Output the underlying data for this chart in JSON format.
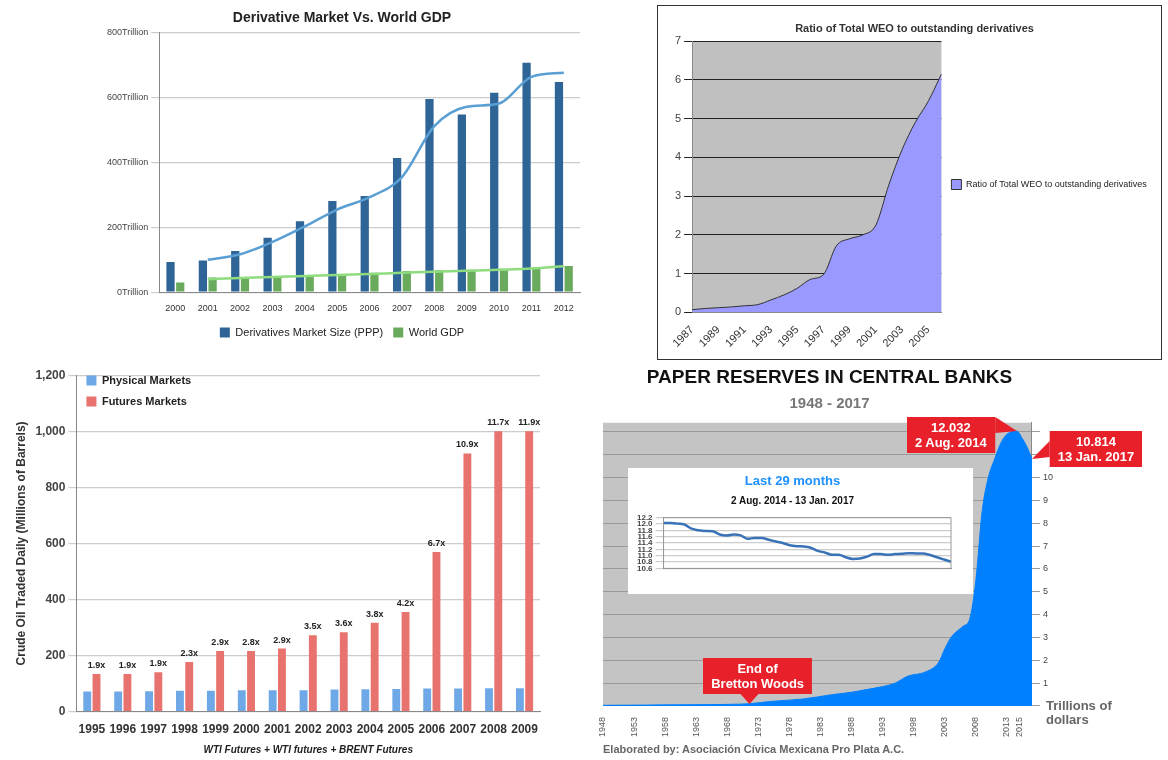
{
  "chart_data": [
    {
      "type": "bar",
      "title": "Derivative Market Vs. World GDP",
      "categories": [
        "2000",
        "2001",
        "2002",
        "2003",
        "2004",
        "2005",
        "2006",
        "2007",
        "2008",
        "2009",
        "2010",
        "2011",
        "2012"
      ],
      "series": [
        {
          "name": "Derivatives Market Size (PPP)",
          "color": "#2f6496",
          "values": [
            93,
            98,
            127,
            168,
            219,
            281,
            297,
            414,
            596,
            548,
            615,
            708,
            648
          ]
        },
        {
          "name": "World GDP",
          "color": "#6aaa5c",
          "values": [
            30,
            45,
            45,
            48,
            52,
            55,
            60,
            65,
            68,
            69,
            72,
            77,
            81
          ]
        },
        {
          "type": "line",
          "color": "#5a9fd4",
          "values": [
            null,
            100,
            117,
            155,
            203,
            255,
            293,
            355,
            512,
            572,
            582,
            664,
            677
          ]
        },
        {
          "type": "line",
          "color": "#8fdc7f",
          "values": [
            null,
            40,
            44,
            47,
            50,
            53,
            56,
            60,
            63,
            66,
            69,
            73,
            80
          ]
        }
      ],
      "ylim": [
        0,
        800
      ],
      "yticks": [
        {
          "value": 0,
          "label": "0Trillion"
        },
        {
          "value": 200,
          "label": "200Trillion"
        },
        {
          "value": 400,
          "label": "400Trillion"
        },
        {
          "value": 600,
          "label": "600Trillion"
        },
        {
          "value": 800,
          "label": "800Trillion"
        }
      ],
      "grid": "y",
      "legend": "bottom"
    },
    {
      "type": "area",
      "title": "Ratio of Total WEO to outstanding derivatives",
      "categories": [
        "1987",
        null,
        "1989",
        null,
        "1991",
        null,
        "1993",
        null,
        "1995",
        null,
        "1997",
        null,
        "1999",
        null,
        "2001",
        null,
        "2003",
        null,
        "2005",
        null
      ],
      "series": [
        {
          "name": "Ratio of Total WEO to outstanding derivatives",
          "color": "#9999ff",
          "values": [
            0.07,
            0.1,
            0.12,
            0.14,
            0.17,
            0.2,
            0.32,
            0.45,
            0.62,
            0.85,
            0.97,
            1.72,
            1.9,
            2.0,
            2.25,
            3.3,
            4.2,
            4.9,
            5.45,
            6.15
          ]
        }
      ],
      "ylim": [
        0,
        7
      ],
      "yticks": [
        0,
        1,
        2,
        3,
        4,
        5,
        6,
        7
      ],
      "grid": "y",
      "legend": "right"
    },
    {
      "type": "bar",
      "ylabel": "Crude Oil Traded Daily (Millions of Barrels)",
      "xlabel": "WTI Futures + WTI futures + BRENT Futures",
      "categories": [
        "1995",
        "1996",
        "1997",
        "1998",
        "1999",
        "2000",
        "2001",
        "2002",
        "2003",
        "2004",
        "2005",
        "2006",
        "2007",
        "2008",
        "2009"
      ],
      "series": [
        {
          "name": "Physical Markets",
          "color": "#6fa8e6",
          "values": [
            72,
            72,
            73,
            74,
            74,
            76,
            76,
            76,
            79,
            80,
            81,
            82,
            82,
            83,
            83
          ]
        },
        {
          "name": "Futures Markets",
          "color": "#e8726e",
          "values": [
            134,
            134,
            140,
            177,
            216,
            216,
            225,
            272,
            283,
            317,
            355,
            569,
            921,
            1000,
            1000
          ]
        }
      ],
      "annotations": [
        {
          "text": "1.9x",
          "x": "1995",
          "y": 134
        },
        {
          "text": "1.9x",
          "x": "1996",
          "y": 134
        },
        {
          "text": "1.9x",
          "x": "1997",
          "y": 140
        },
        {
          "text": "2.3x",
          "x": "1998",
          "y": 177
        },
        {
          "text": "2.9x",
          "x": "1999",
          "y": 216
        },
        {
          "text": "2.8x",
          "x": "2000",
          "y": 216
        },
        {
          "text": "2.9x",
          "x": "2001",
          "y": 225
        },
        {
          "text": "3.5x",
          "x": "2002",
          "y": 272
        },
        {
          "text": "3.6x",
          "x": "2003",
          "y": 283
        },
        {
          "text": "3.8x",
          "x": "2004",
          "y": 317
        },
        {
          "text": "4.2x",
          "x": "2005",
          "y": 355
        },
        {
          "text": "6.7x",
          "x": "2006",
          "y": 569
        },
        {
          "text": "10.9x",
          "x": "2007",
          "y": 921
        },
        {
          "text": "11.7x",
          "x": "2008",
          "y": 1000
        },
        {
          "text": "11.9x",
          "x": "2009",
          "y": 1000
        }
      ],
      "ylim": [
        0,
        1200
      ],
      "yticks": [
        0,
        200,
        400,
        600,
        800,
        {
          "value": 1000,
          "label": "1,000"
        },
        {
          "value": 1200,
          "label": "1,200"
        }
      ],
      "grid": "y",
      "legend": "top left"
    },
    {
      "type": "area",
      "title": "PAPER RESERVES IN CENTRAL BANKS",
      "subtitle": "1948 - 2017",
      "ylabel": "Trillions of dollars",
      "x": [
        1948,
        1955,
        1960,
        1965,
        1970,
        1971.6,
        1975,
        1980,
        1985,
        1988,
        1990,
        1993,
        1995,
        1997,
        2000,
        2002,
        2003,
        2004,
        2006,
        2007,
        2008,
        2009,
        2010,
        2011,
        2012,
        2013,
        2014.59,
        2015.5,
        2016.3,
        2017.03
      ],
      "series": [
        {
          "color": "#0080ff",
          "values": [
            0.03,
            0.04,
            0.05,
            0.06,
            0.08,
            0.1,
            0.2,
            0.3,
            0.5,
            0.6,
            0.7,
            0.85,
            1.0,
            1.3,
            1.5,
            1.9,
            2.5,
            3.0,
            3.5,
            3.8,
            5.5,
            8.5,
            10.0,
            10.8,
            11.5,
            11.9,
            12.032,
            11.7,
            11.3,
            10.814
          ]
        }
      ],
      "xlim": [
        1948,
        2017.03
      ],
      "xticks": [
        1948,
        1953,
        1958,
        1963,
        1968,
        1973,
        1978,
        1983,
        1988,
        1993,
        1998,
        2003,
        2008,
        2013,
        2015
      ],
      "ylim": [
        0,
        12.4
      ],
      "yticks": [
        {
          "value": 0,
          "label": null
        },
        1,
        2,
        3,
        4,
        5,
        6,
        7,
        8,
        9,
        10,
        {
          "value": 11,
          "label": null
        },
        {
          "value": 12,
          "label": null
        }
      ],
      "grid": "y",
      "annotations": [
        {
          "text": "12.032\n2 Aug. 2014",
          "x": 2014.59,
          "y": 12.032
        },
        {
          "text": "10.814\n13 Jan. 2017",
          "x": 2017.03,
          "y": 10.814
        },
        {
          "text": "End of\nBretton Woods",
          "x": 1971.6,
          "y": 0.1
        },
        "Elaborated by:  Asociación Cívica Mexicana Pro Plata A.C."
      ]
    },
    {
      "type": "line",
      "title": "Last 29 months",
      "subtitle": "2 Aug. 2014 - 13 Jan. 2017",
      "categories": [
        null,
        null,
        null,
        null,
        null,
        null,
        null,
        null,
        null,
        null,
        null,
        null,
        null,
        null,
        null,
        null,
        null,
        null,
        null,
        null,
        null,
        null,
        null,
        null,
        null,
        null,
        null,
        null,
        null,
        null,
        null,
        null,
        null,
        null,
        null,
        null,
        null,
        null,
        null,
        null,
        null,
        null
      ],
      "series": [
        {
          "color": "#3a72b8",
          "values": [
            12.03,
            12.03,
            12.01,
            11.98,
            11.85,
            11.8,
            11.78,
            11.77,
            11.67,
            11.64,
            11.67,
            11.64,
            11.53,
            11.56,
            11.56,
            11.5,
            11.45,
            11.4,
            11.33,
            11.3,
            11.29,
            11.25,
            11.15,
            11.1,
            11.03,
            11.03,
            10.95,
            10.9,
            10.91,
            10.97,
            11.05,
            11.05,
            11.03,
            11.05,
            11.06,
            11.08,
            11.07,
            11.07,
            11.02,
            10.95,
            10.88,
            10.81
          ]
        }
      ],
      "ylim": [
        10.6,
        12.2
      ],
      "yticks": [
        10.6,
        10.8,
        {
          "value": 11,
          "label": "11.0"
        },
        11.2,
        11.4,
        11.6,
        11.8,
        {
          "value": 12,
          "label": "12.0"
        },
        12.2
      ],
      "grid": "y"
    }
  ]
}
